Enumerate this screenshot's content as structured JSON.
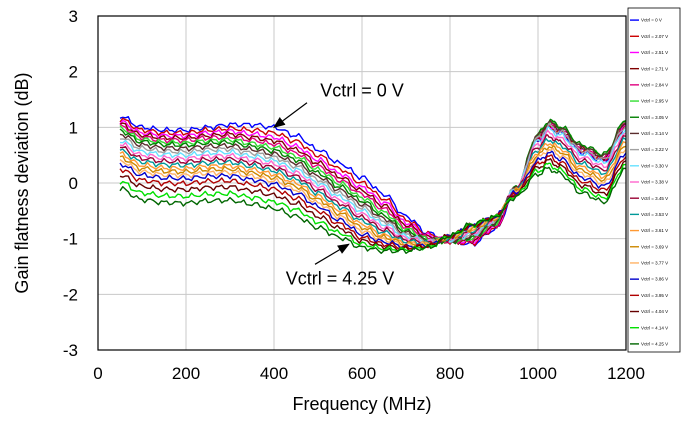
{
  "chart_data": {
    "type": "line",
    "xlabel": "Frequency (MHz)",
    "ylabel": "Gain flatness deviation (dB)",
    "xlim": [
      0,
      1200
    ],
    "ylim": [
      -3,
      3
    ],
    "x_ticks": [
      "0",
      "200",
      "400",
      "600",
      "800",
      "1000",
      "1200"
    ],
    "y_ticks": [
      "-3",
      "-2",
      "-1",
      "0",
      "1",
      "2",
      "3"
    ],
    "grid": true,
    "legend_position": "right",
    "x": [
      50,
      100,
      150,
      200,
      250,
      300,
      350,
      400,
      450,
      500,
      550,
      600,
      650,
      700,
      750,
      800,
      850,
      900,
      950,
      1000,
      1025,
      1050,
      1100,
      1150,
      1200
    ],
    "series": [
      {
        "name": "Vctrl = 0 V",
        "color": "#0000FF",
        "values": [
          1.2,
          1.0,
          0.95,
          0.95,
          1.0,
          1.05,
          1.05,
          1.0,
          0.85,
          0.6,
          0.35,
          0.1,
          -0.2,
          -0.6,
          -0.9,
          -1.05,
          -1.1,
          -0.85,
          -0.2,
          0.75,
          1.0,
          0.9,
          0.55,
          0.4,
          1.0
        ]
      },
      {
        "name": "Vctrl = 2.07 V",
        "color": "#CC0000",
        "values": [
          1.15,
          0.95,
          0.9,
          0.9,
          0.95,
          0.98,
          0.95,
          0.9,
          0.75,
          0.5,
          0.25,
          0.0,
          -0.28,
          -0.66,
          -0.92,
          -1.05,
          -1.08,
          -0.83,
          -0.18,
          0.78,
          1.02,
          0.92,
          0.58,
          0.42,
          1.02
        ]
      },
      {
        "name": "Vctrl = 2.51 V",
        "color": "#FF00FF",
        "values": [
          1.1,
          0.9,
          0.85,
          0.85,
          0.9,
          0.93,
          0.88,
          0.82,
          0.66,
          0.42,
          0.17,
          -0.08,
          -0.35,
          -0.71,
          -0.94,
          -1.05,
          -1.06,
          -0.81,
          -0.16,
          0.8,
          1.04,
          0.94,
          0.6,
          0.44,
          1.04
        ]
      },
      {
        "name": "Vctrl = 2.71 V",
        "color": "#800000",
        "values": [
          1.06,
          0.86,
          0.81,
          0.81,
          0.85,
          0.88,
          0.82,
          0.76,
          0.6,
          0.36,
          0.11,
          -0.14,
          -0.41,
          -0.75,
          -0.96,
          -1.05,
          -1.04,
          -0.79,
          -0.14,
          0.82,
          1.06,
          0.96,
          0.62,
          0.46,
          1.06
        ]
      },
      {
        "name": "Vctrl = 2.84 V",
        "color": "#E0007F",
        "values": [
          1.02,
          0.82,
          0.77,
          0.77,
          0.81,
          0.83,
          0.77,
          0.7,
          0.54,
          0.3,
          0.05,
          -0.2,
          -0.47,
          -0.79,
          -0.98,
          -1.05,
          -1.02,
          -0.77,
          -0.12,
          0.84,
          1.08,
          0.98,
          0.64,
          0.48,
          1.08
        ]
      },
      {
        "name": "Vctrl = 2.95 V",
        "color": "#33DD33",
        "values": [
          0.98,
          0.78,
          0.73,
          0.72,
          0.76,
          0.78,
          0.71,
          0.64,
          0.48,
          0.24,
          -0.01,
          -0.26,
          -0.53,
          -0.83,
          -1.0,
          -1.05,
          -1.0,
          -0.75,
          -0.1,
          0.86,
          1.1,
          1.0,
          0.66,
          0.5,
          1.1
        ]
      },
      {
        "name": "Vctrl = 3.05 V",
        "color": "#008000",
        "values": [
          0.94,
          0.74,
          0.69,
          0.68,
          0.72,
          0.73,
          0.66,
          0.58,
          0.42,
          0.18,
          -0.07,
          -0.32,
          -0.59,
          -0.87,
          -1.02,
          -1.05,
          -0.98,
          -0.73,
          -0.08,
          0.88,
          1.12,
          1.02,
          0.68,
          0.52,
          1.12
        ]
      },
      {
        "name": "Vctrl = 3.14 V",
        "color": "#5A2D2D",
        "values": [
          0.88,
          0.68,
          0.63,
          0.62,
          0.66,
          0.67,
          0.6,
          0.52,
          0.36,
          0.12,
          -0.13,
          -0.38,
          -0.64,
          -0.9,
          -1.03,
          -1.04,
          -0.96,
          -0.71,
          -0.08,
          0.85,
          1.08,
          0.98,
          0.64,
          0.48,
          1.08
        ]
      },
      {
        "name": "Vctrl = 3.22 V",
        "color": "#A0A0A0",
        "values": [
          0.82,
          0.62,
          0.57,
          0.56,
          0.6,
          0.61,
          0.54,
          0.46,
          0.3,
          0.06,
          -0.19,
          -0.44,
          -0.69,
          -0.93,
          -1.04,
          -1.03,
          -0.94,
          -0.7,
          -0.09,
          0.8,
          1.02,
          0.92,
          0.58,
          0.42,
          1.02
        ]
      },
      {
        "name": "Vctrl = 3.30 V",
        "color": "#66E0FF",
        "values": [
          0.76,
          0.56,
          0.51,
          0.5,
          0.54,
          0.55,
          0.48,
          0.4,
          0.24,
          0.0,
          -0.25,
          -0.5,
          -0.74,
          -0.96,
          -1.05,
          -1.02,
          -0.92,
          -0.69,
          -0.1,
          0.75,
          0.96,
          0.86,
          0.52,
          0.36,
          0.96
        ]
      },
      {
        "name": "Vctrl = 3.38 V",
        "color": "#FF66CC",
        "values": [
          0.7,
          0.5,
          0.45,
          0.44,
          0.48,
          0.49,
          0.42,
          0.34,
          0.18,
          -0.06,
          -0.31,
          -0.56,
          -0.79,
          -0.99,
          -1.06,
          -1.01,
          -0.9,
          -0.68,
          -0.11,
          0.7,
          0.9,
          0.8,
          0.46,
          0.3,
          0.9
        ]
      },
      {
        "name": "Vctrl = 3.45 V",
        "color": "#990033",
        "values": [
          0.64,
          0.44,
          0.39,
          0.38,
          0.42,
          0.43,
          0.36,
          0.28,
          0.12,
          -0.12,
          -0.37,
          -0.62,
          -0.84,
          -1.02,
          -1.07,
          -1.0,
          -0.88,
          -0.67,
          -0.12,
          0.65,
          0.84,
          0.74,
          0.4,
          0.24,
          0.84
        ]
      },
      {
        "name": "Vctrl = 3.53 V",
        "color": "#009999",
        "values": [
          0.58,
          0.38,
          0.33,
          0.32,
          0.36,
          0.37,
          0.3,
          0.22,
          0.06,
          -0.18,
          -0.43,
          -0.68,
          -0.89,
          -1.05,
          -1.08,
          -0.99,
          -0.86,
          -0.66,
          -0.13,
          0.6,
          0.78,
          0.68,
          0.34,
          0.18,
          0.78
        ]
      },
      {
        "name": "Vctrl = 3.61 V",
        "color": "#FF9933",
        "values": [
          0.52,
          0.32,
          0.27,
          0.26,
          0.3,
          0.31,
          0.24,
          0.16,
          0.0,
          -0.24,
          -0.49,
          -0.74,
          -0.94,
          -1.08,
          -1.09,
          -0.98,
          -0.84,
          -0.65,
          -0.14,
          0.55,
          0.72,
          0.62,
          0.28,
          0.12,
          0.72
        ]
      },
      {
        "name": "Vctrl = 3.69 V",
        "color": "#CC8800",
        "values": [
          0.46,
          0.26,
          0.21,
          0.2,
          0.24,
          0.25,
          0.18,
          0.1,
          -0.06,
          -0.3,
          -0.55,
          -0.8,
          -0.98,
          -1.1,
          -1.1,
          -0.97,
          -0.82,
          -0.64,
          -0.15,
          0.5,
          0.66,
          0.56,
          0.22,
          0.06,
          0.66
        ]
      },
      {
        "name": "Vctrl = 3.77 V",
        "color": "#FFB266",
        "values": [
          0.4,
          0.2,
          0.15,
          0.14,
          0.18,
          0.19,
          0.12,
          0.04,
          -0.12,
          -0.36,
          -0.61,
          -0.86,
          -1.02,
          -1.12,
          -1.11,
          -0.96,
          -0.8,
          -0.63,
          -0.16,
          0.45,
          0.6,
          0.5,
          0.16,
          0.0,
          0.6
        ]
      },
      {
        "name": "Vctrl = 3.86 V",
        "color": "#0000CC",
        "values": [
          0.34,
          0.14,
          0.09,
          0.08,
          0.12,
          0.13,
          0.06,
          -0.02,
          -0.18,
          -0.42,
          -0.67,
          -0.92,
          -1.06,
          -1.14,
          -1.12,
          -0.95,
          -0.78,
          -0.62,
          -0.17,
          0.4,
          0.54,
          0.44,
          0.1,
          -0.06,
          0.54
        ]
      },
      {
        "name": "Vctrl = 3.95 V",
        "color": "#B00000",
        "values": [
          0.25,
          0.05,
          0.0,
          -0.01,
          0.03,
          0.04,
          -0.03,
          -0.11,
          -0.27,
          -0.5,
          -0.74,
          -0.98,
          -1.1,
          -1.16,
          -1.13,
          -0.95,
          -0.77,
          -0.62,
          -0.19,
          0.34,
          0.47,
          0.37,
          0.03,
          -0.13,
          0.47
        ]
      },
      {
        "name": "Vctrl = 4.04 V",
        "color": "#660000",
        "values": [
          0.14,
          -0.06,
          -0.11,
          -0.12,
          -0.08,
          -0.07,
          -0.14,
          -0.22,
          -0.37,
          -0.6,
          -0.82,
          -1.04,
          -1.14,
          -1.18,
          -1.14,
          -0.95,
          -0.76,
          -0.62,
          -0.21,
          0.28,
          0.4,
          0.3,
          -0.04,
          -0.2,
          0.4
        ]
      },
      {
        "name": "Vctrl = 4.14 V",
        "color": "#00E000",
        "values": [
          0.02,
          -0.18,
          -0.23,
          -0.24,
          -0.2,
          -0.19,
          -0.26,
          -0.34,
          -0.48,
          -0.7,
          -0.9,
          -1.1,
          -1.18,
          -1.2,
          -1.15,
          -0.95,
          -0.75,
          -0.62,
          -0.23,
          0.22,
          0.33,
          0.23,
          -0.11,
          -0.27,
          0.33
        ]
      },
      {
        "name": "Vctrl = 4.25 V",
        "color": "#006600",
        "values": [
          -0.1,
          -0.3,
          -0.35,
          -0.36,
          -0.32,
          -0.31,
          -0.38,
          -0.46,
          -0.6,
          -0.8,
          -0.98,
          -1.16,
          -1.22,
          -1.22,
          -1.16,
          -0.95,
          -0.74,
          -0.62,
          -0.25,
          0.16,
          0.26,
          0.16,
          -0.18,
          -0.34,
          0.26
        ]
      }
    ],
    "annotations": [
      {
        "text": "Vctrl = 0 V",
        "x": 600,
        "y": 1.55,
        "arrow_to": [
          400,
          1.0
        ]
      },
      {
        "text": "Vctrl = 4.25 V",
        "x": 550,
        "y": -1.82,
        "arrow_to": [
          570,
          -1.1
        ]
      }
    ]
  }
}
